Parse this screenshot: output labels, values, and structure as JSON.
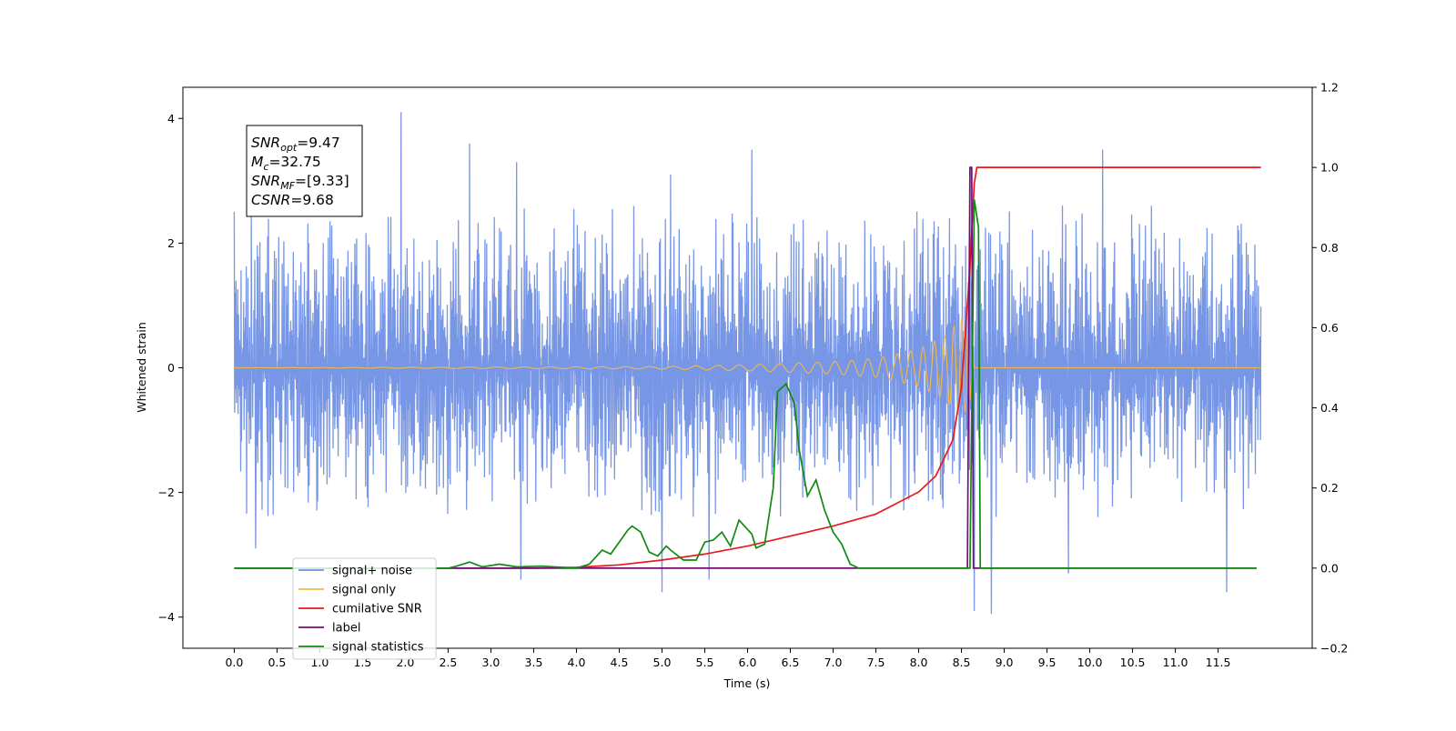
{
  "chart_data": {
    "type": "line",
    "xlabel": "Time (s)",
    "ylabel": "Whitened strain",
    "xlim": [
      -0.6,
      12.6
    ],
    "ylim": [
      -4.5,
      4.5
    ],
    "y2lim": [
      -0.2,
      1.2
    ],
    "x_ticks": [
      0.0,
      0.5,
      1.0,
      1.5,
      2.0,
      2.5,
      3.0,
      3.5,
      4.0,
      4.5,
      5.0,
      5.5,
      6.0,
      6.5,
      7.0,
      7.5,
      8.0,
      8.5,
      9.0,
      9.5,
      10.0,
      10.5,
      11.0,
      11.5
    ],
    "x_tick_labels": [
      "0.0",
      "0.5",
      "1.0",
      "1.5",
      "2.0",
      "2.5",
      "3.0",
      "3.5",
      "4.0",
      "4.5",
      "5.0",
      "5.5",
      "6.0",
      "6.5",
      "7.0",
      "7.5",
      "8.0",
      "8.5",
      "9.0",
      "9.5",
      "10.0",
      "10.5",
      "11.0",
      "11.5"
    ],
    "y_ticks": [
      -4,
      -2,
      0,
      2,
      4
    ],
    "y_tick_labels": [
      "−4",
      "−2",
      "0",
      "2",
      "4"
    ],
    "y2_ticks": [
      -0.2,
      0.0,
      0.2,
      0.4,
      0.6,
      0.8,
      1.0,
      1.2
    ],
    "y2_tick_labels": [
      "−0.2",
      "0.0",
      "0.2",
      "0.4",
      "0.6",
      "0.8",
      "1.0",
      "1.2"
    ],
    "grid": false,
    "legend_placement": "lower-left",
    "annotation": [
      {
        "symbol": "SNR",
        "sub": "opt",
        "value": "=9.47"
      },
      {
        "symbol": "M",
        "sub": "c",
        "value": "=32.75"
      },
      {
        "symbol": "SNR",
        "sub": "MF",
        "value": "=[9.33]"
      },
      {
        "symbol": "CSNR",
        "sub": "",
        "value": "=9.68"
      }
    ],
    "series": [
      {
        "name": "signal+ noise",
        "axis": "left",
        "color": "#7090e4",
        "kind": "noise",
        "x_range": [
          0.0,
          12.0
        ],
        "typical_amplitude": [
          -1.8,
          2.0
        ],
        "peaks": [
          [
            0.0,
            2.5
          ],
          [
            1.95,
            4.1
          ],
          [
            2.75,
            3.6
          ],
          [
            3.3,
            3.3
          ],
          [
            5.1,
            3.1
          ],
          [
            6.05,
            3.5
          ],
          [
            8.6,
            3.2
          ],
          [
            10.15,
            3.5
          ],
          [
            0.25,
            -2.9
          ],
          [
            3.35,
            -3.4
          ],
          [
            5.0,
            -3.6
          ],
          [
            5.55,
            -3.4
          ],
          [
            8.65,
            -3.9
          ],
          [
            8.85,
            -3.95
          ],
          [
            9.75,
            -3.3
          ],
          [
            11.6,
            -3.6
          ]
        ]
      },
      {
        "name": "signal only",
        "axis": "left",
        "color": "#f5b942",
        "kind": "chirp",
        "points": [
          [
            0.0,
            0.0
          ],
          [
            5.0,
            0.02
          ],
          [
            6.0,
            0.05
          ],
          [
            7.0,
            0.1
          ],
          [
            7.5,
            0.15
          ],
          [
            8.0,
            0.3
          ],
          [
            8.3,
            0.5
          ],
          [
            8.5,
            0.8
          ],
          [
            8.6,
            0.6
          ],
          [
            8.65,
            0.0
          ],
          [
            12.0,
            0.0
          ]
        ]
      },
      {
        "name": "cumilative SNR",
        "axis": "right",
        "color": "#e8191c",
        "points": [
          [
            0.0,
            0.0
          ],
          [
            3.5,
            0.0
          ],
          [
            4.0,
            0.002
          ],
          [
            4.5,
            0.008
          ],
          [
            5.0,
            0.02
          ],
          [
            5.5,
            0.035
          ],
          [
            6.0,
            0.055
          ],
          [
            6.5,
            0.08
          ],
          [
            7.0,
            0.105
          ],
          [
            7.5,
            0.135
          ],
          [
            8.0,
            0.19
          ],
          [
            8.2,
            0.23
          ],
          [
            8.4,
            0.32
          ],
          [
            8.5,
            0.45
          ],
          [
            8.6,
            0.75
          ],
          [
            8.65,
            0.96
          ],
          [
            8.68,
            1.0
          ],
          [
            12.0,
            1.0
          ]
        ]
      },
      {
        "name": "label",
        "axis": "right",
        "color": "#7a0a7a",
        "points": [
          [
            0.0,
            0.0
          ],
          [
            8.57,
            0.0
          ],
          [
            8.6,
            1.0
          ],
          [
            8.62,
            1.0
          ],
          [
            8.64,
            0.0
          ],
          [
            11.95,
            0.0
          ]
        ]
      },
      {
        "name": "signal statistics",
        "axis": "right",
        "color": "#118a11",
        "points": [
          [
            0.0,
            0.0
          ],
          [
            2.5,
            0.0
          ],
          [
            2.6,
            0.005
          ],
          [
            2.75,
            0.015
          ],
          [
            2.9,
            0.003
          ],
          [
            3.1,
            0.01
          ],
          [
            3.3,
            0.003
          ],
          [
            3.6,
            0.005
          ],
          [
            4.0,
            0.0
          ],
          [
            4.15,
            0.01
          ],
          [
            4.3,
            0.045
          ],
          [
            4.4,
            0.035
          ],
          [
            4.5,
            0.065
          ],
          [
            4.6,
            0.095
          ],
          [
            4.65,
            0.105
          ],
          [
            4.75,
            0.09
          ],
          [
            4.85,
            0.04
          ],
          [
            4.95,
            0.03
          ],
          [
            5.05,
            0.055
          ],
          [
            5.1,
            0.045
          ],
          [
            5.25,
            0.02
          ],
          [
            5.4,
            0.02
          ],
          [
            5.5,
            0.065
          ],
          [
            5.6,
            0.07
          ],
          [
            5.7,
            0.09
          ],
          [
            5.8,
            0.055
          ],
          [
            5.9,
            0.12
          ],
          [
            6.05,
            0.085
          ],
          [
            6.1,
            0.05
          ],
          [
            6.2,
            0.06
          ],
          [
            6.3,
            0.2
          ],
          [
            6.35,
            0.44
          ],
          [
            6.45,
            0.46
          ],
          [
            6.55,
            0.41
          ],
          [
            6.6,
            0.3
          ],
          [
            6.7,
            0.18
          ],
          [
            6.8,
            0.22
          ],
          [
            6.9,
            0.145
          ],
          [
            7.0,
            0.09
          ],
          [
            7.1,
            0.06
          ],
          [
            7.2,
            0.01
          ],
          [
            7.3,
            0.0
          ],
          [
            8.6,
            0.0
          ],
          [
            8.65,
            0.92
          ],
          [
            8.7,
            0.85
          ],
          [
            8.72,
            0.0
          ],
          [
            11.95,
            0.0
          ]
        ]
      }
    ]
  }
}
